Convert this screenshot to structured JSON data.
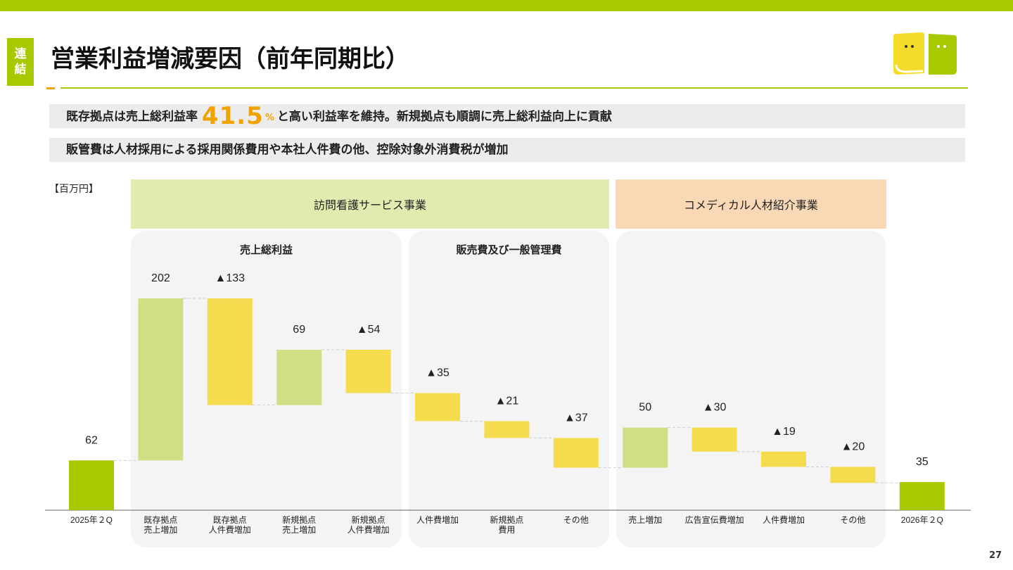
{
  "header": {
    "badge_line1": "連",
    "badge_line2": "結",
    "title": "営業利益増減要因（前年同期比）"
  },
  "summary": {
    "line1_pre": "既存拠点は売上総利益率",
    "line1_value": "41.5",
    "line1_unit": "%",
    "line1_post": "と高い利益率を維持。新規拠点も順調に売上総利益向上に貢献",
    "line2": "販管費は人材採用による採用関係費用や本社人件費の他、控除対象外消費税が増加"
  },
  "unit_label": "【百万円】",
  "segments": [
    "訪問看護サービス事業",
    "コメディカル人材紹介事業"
  ],
  "panels": [
    "売上総利益",
    "販売費及び一般管理費"
  ],
  "page_number": "27",
  "colors": {
    "accent": "#a8c800",
    "total": "#a8c800",
    "increase": "#d0df84",
    "decrease": "#f5dc4f",
    "emphasis": "#f2a200"
  },
  "chart_data": {
    "type": "waterfall",
    "unit": "百万円",
    "categories": [
      [
        "2025年２Q"
      ],
      [
        "既存拠点",
        "売上増加"
      ],
      [
        "既存拠点",
        "人件費増加"
      ],
      [
        "新規拠点",
        "売上増加"
      ],
      [
        "新規拠点",
        "人件費増加"
      ],
      [
        "人件費増加"
      ],
      [
        "新規拠点",
        "費用"
      ],
      [
        "その他"
      ],
      [
        "売上増加"
      ],
      [
        "広告宣伝費増加"
      ],
      [
        "人件費増加"
      ],
      [
        "その他"
      ],
      [
        "2026年２Q"
      ]
    ],
    "values": [
      62,
      202,
      -133,
      69,
      -54,
      -35,
      -21,
      -37,
      50,
      -30,
      -19,
      -20,
      35
    ],
    "kinds": [
      "total",
      "increase",
      "decrease",
      "increase",
      "decrease",
      "decrease",
      "decrease",
      "decrease",
      "increase",
      "decrease",
      "decrease",
      "decrease",
      "total"
    ],
    "labels": [
      "62",
      "202",
      "▲133",
      "69",
      "▲54",
      "▲35",
      "▲21",
      "▲37",
      "50",
      "▲30",
      "▲19",
      "▲20",
      "35"
    ]
  }
}
